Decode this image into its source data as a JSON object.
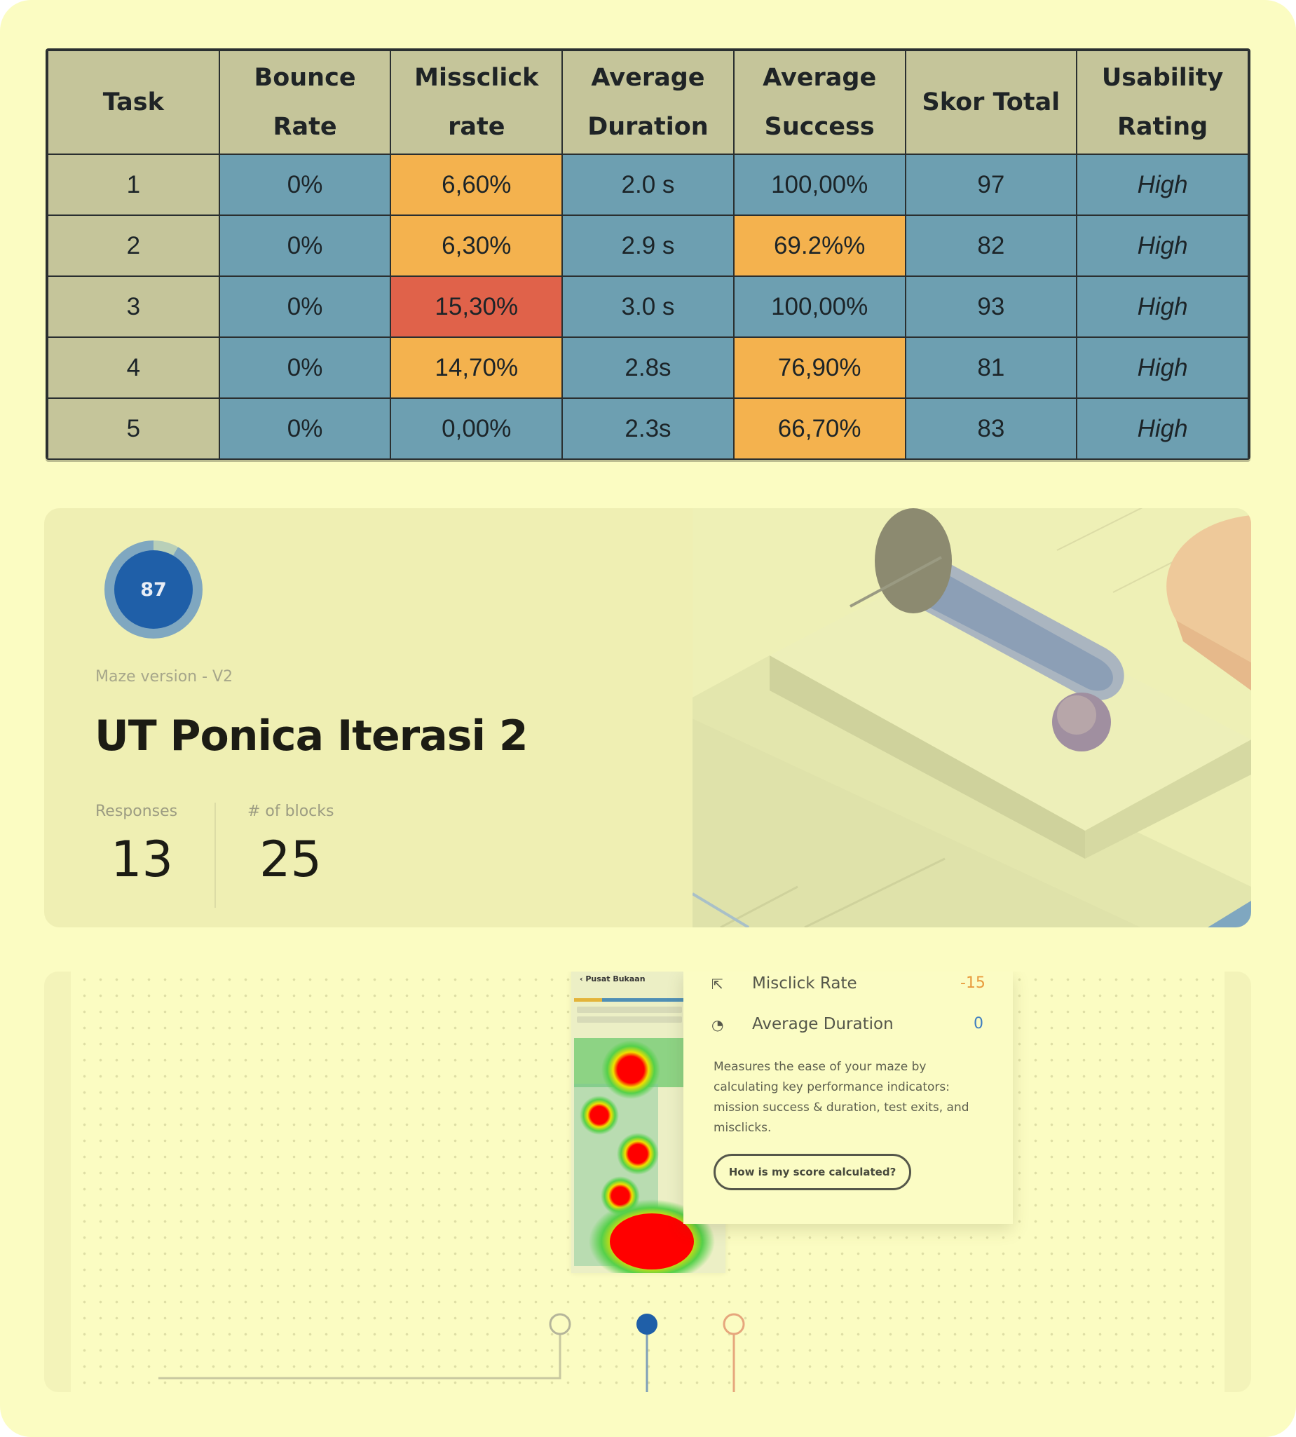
{
  "table": {
    "headers": [
      [
        "Task"
      ],
      [
        "Bounce Rate"
      ],
      [
        "Missclick",
        "rate"
      ],
      [
        "Average",
        "Duration"
      ],
      [
        "Average",
        "Success"
      ],
      [
        "Skor Total"
      ],
      [
        "Usability",
        "Rating"
      ]
    ],
    "rows": [
      {
        "task": "1",
        "bounce": "0%",
        "missclick": "6,60%",
        "duration": "2.0 s",
        "success": "100,00%",
        "score": "97",
        "rating": "High",
        "missclick_status": "warning",
        "success_status": "normal"
      },
      {
        "task": "2",
        "bounce": "0%",
        "missclick": "6,30%",
        "duration": "2.9 s",
        "success": "69.2%%",
        "score": "82",
        "rating": "High",
        "missclick_status": "warning",
        "success_status": "warning"
      },
      {
        "task": "3",
        "bounce": "0%",
        "missclick": "15,30%",
        "duration": "3.0 s",
        "success": "100,00%",
        "score": "93",
        "rating": "High",
        "missclick_status": "critical",
        "success_status": "normal"
      },
      {
        "task": "4",
        "bounce": "0%",
        "missclick": "14,70%",
        "duration": "2.8s",
        "success": "76,90%",
        "score": "81",
        "rating": "High",
        "missclick_status": "warning",
        "success_status": "warning"
      },
      {
        "task": "5",
        "bounce": "0%",
        "missclick": "0,00%",
        "duration": "2.3s",
        "success": "66,70%",
        "score": "83",
        "rating": "High",
        "missclick_status": "normal",
        "success_status": "warning"
      }
    ],
    "colors": {
      "normal": "#6d9fb1",
      "warning": "#f4b24e",
      "critical": "#e0624a",
      "header": "#c5c59a"
    }
  },
  "maze": {
    "score": "87",
    "score_fraction": 0.92,
    "version": "Maze version - V2",
    "title": "UT Ponica Iterasi 2",
    "responses_label": "Responses",
    "responses_value": "13",
    "blocks_label": "# of blocks",
    "blocks_value": "25"
  },
  "details": {
    "phone_back_label": "Pusat Bukaan",
    "misclick_label": "Misclick Rate",
    "misclick_value": "-15",
    "misclick_icon": "cursor-click-icon",
    "duration_label": "Average Duration",
    "duration_value": "0",
    "duration_icon": "clock-icon",
    "description": "Measures the ease of your maze by calculating key performance indicators: mission success & duration, test exits, and misclicks.",
    "button_label": "How is my score calculated?",
    "value_colors": {
      "negative": "#e89a3c",
      "neutral": "#3f7ec0"
    }
  }
}
